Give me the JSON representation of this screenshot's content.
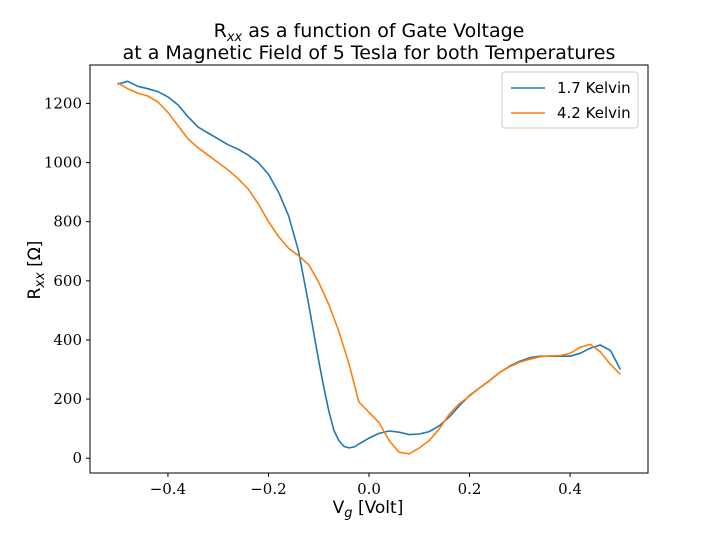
{
  "chart_data": {
    "type": "line",
    "title": {
      "line1_prefix": "R",
      "line1_sub": "xx",
      "line1_rest": " as a function of Gate Voltage",
      "line2": "at a Magnetic Field of 5 Tesla for both Temperatures"
    },
    "xlabel": {
      "prefix": "V",
      "sub": "g",
      "rest": " [Volt]"
    },
    "ylabel": {
      "prefix": "R",
      "sub": "xx",
      "rest": " [Ω]"
    },
    "xlim": [
      -0.555,
      0.555
    ],
    "ylim": [
      -50,
      1330
    ],
    "xticks": [
      -0.4,
      -0.2,
      0.0,
      0.2,
      0.4
    ],
    "xtick_labels": [
      "−0.4",
      "−0.2",
      "0.0",
      "0.2",
      "0.4"
    ],
    "yticks": [
      0,
      200,
      400,
      600,
      800,
      1000,
      1200
    ],
    "ytick_labels": [
      "0",
      "200",
      "400",
      "600",
      "800",
      "1000",
      "1200"
    ],
    "grid": false,
    "legend_position": "top-right",
    "series": [
      {
        "name": "1.7 Kelvin",
        "color": "#1f77b4",
        "x": [
          -0.5,
          -0.48,
          -0.46,
          -0.44,
          -0.42,
          -0.4,
          -0.38,
          -0.36,
          -0.34,
          -0.32,
          -0.3,
          -0.28,
          -0.26,
          -0.24,
          -0.22,
          -0.2,
          -0.18,
          -0.16,
          -0.14,
          -0.12,
          -0.1,
          -0.09,
          -0.08,
          -0.07,
          -0.06,
          -0.05,
          -0.04,
          -0.03,
          -0.02,
          -0.01,
          0.0,
          0.02,
          0.04,
          0.06,
          0.08,
          0.1,
          0.12,
          0.14,
          0.16,
          0.18,
          0.2,
          0.22,
          0.24,
          0.26,
          0.28,
          0.3,
          0.32,
          0.34,
          0.36,
          0.38,
          0.4,
          0.42,
          0.44,
          0.46,
          0.48,
          0.5
        ],
        "y": [
          1265,
          1275,
          1258,
          1250,
          1240,
          1222,
          1195,
          1155,
          1120,
          1100,
          1080,
          1060,
          1045,
          1025,
          1000,
          960,
          900,
          820,
          700,
          520,
          330,
          240,
          160,
          95,
          60,
          40,
          35,
          38,
          48,
          58,
          68,
          84,
          92,
          88,
          80,
          82,
          90,
          110,
          140,
          178,
          212,
          238,
          263,
          290,
          312,
          328,
          340,
          345,
          345,
          345,
          345,
          355,
          372,
          383,
          365,
          300
        ]
      },
      {
        "name": "4.2 Kelvin",
        "color": "#ff7f0e",
        "x": [
          -0.5,
          -0.48,
          -0.46,
          -0.44,
          -0.42,
          -0.4,
          -0.38,
          -0.36,
          -0.34,
          -0.32,
          -0.3,
          -0.28,
          -0.26,
          -0.24,
          -0.22,
          -0.2,
          -0.18,
          -0.16,
          -0.14,
          -0.12,
          -0.1,
          -0.08,
          -0.06,
          -0.04,
          -0.02,
          0.0,
          0.02,
          0.04,
          0.06,
          0.08,
          0.1,
          0.12,
          0.14,
          0.16,
          0.18,
          0.2,
          0.22,
          0.24,
          0.26,
          0.28,
          0.3,
          0.32,
          0.34,
          0.36,
          0.38,
          0.4,
          0.42,
          0.44,
          0.46,
          0.48,
          0.5
        ],
        "y": [
          1270,
          1250,
          1235,
          1225,
          1205,
          1170,
          1125,
          1080,
          1050,
          1025,
          1000,
          975,
          945,
          910,
          860,
          800,
          750,
          710,
          685,
          655,
          595,
          520,
          430,
          320,
          190,
          155,
          120,
          60,
          20,
          15,
          35,
          60,
          100,
          150,
          185,
          210,
          238,
          262,
          290,
          310,
          325,
          335,
          343,
          346,
          347,
          355,
          375,
          385,
          360,
          318,
          283
        ]
      }
    ]
  }
}
